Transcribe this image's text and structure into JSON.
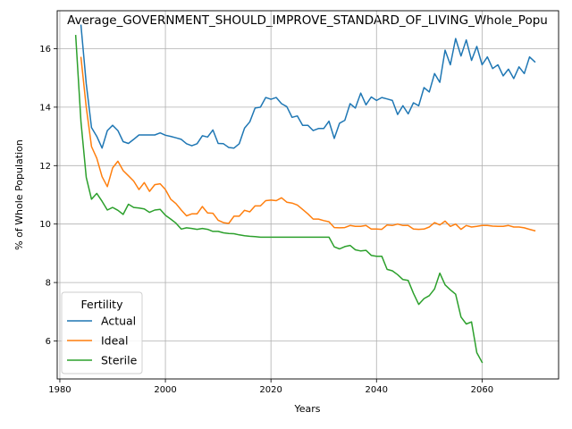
{
  "chart_data": {
    "type": "line",
    "title": "Average_GOVERNMENT_SHOULD_IMPROVE_STANDARD_OF_LIVING_Whole_Popu",
    "xlabel": "Years",
    "ylabel": "% of Whole Population",
    "xlim": [
      1979.5,
      2074.5
    ],
    "ylim": [
      4.7,
      17.3
    ],
    "xticks": [
      1980,
      2000,
      2020,
      2040,
      2060
    ],
    "yticks": [
      6,
      8,
      10,
      12,
      14,
      16
    ],
    "grid": true,
    "legend": {
      "title": "Fertility",
      "placement": "lower-left"
    },
    "series": [
      {
        "name": "Actual",
        "color": "#1f77b4",
        "x": [
          1984,
          1985,
          1986,
          1987,
          1988,
          1989,
          1990,
          1991,
          1992,
          1993,
          1994,
          1995,
          1996,
          1997,
          1998,
          1999,
          2000,
          2001,
          2002,
          2003,
          2004,
          2005,
          2006,
          2007,
          2008,
          2009,
          2010,
          2011,
          2012,
          2013,
          2014,
          2015,
          2016,
          2017,
          2018,
          2019,
          2020,
          2021,
          2022,
          2023,
          2024,
          2025,
          2026,
          2027,
          2028,
          2029,
          2030,
          2031,
          2032,
          2033,
          2034,
          2035,
          2036,
          2037,
          2038,
          2039,
          2040,
          2041,
          2042,
          2043,
          2044,
          2045,
          2046,
          2047,
          2048,
          2049,
          2050,
          2051,
          2052,
          2053,
          2054,
          2055,
          2056,
          2057,
          2058,
          2059,
          2060,
          2061,
          2062,
          2063,
          2064,
          2065,
          2066,
          2067,
          2068,
          2069,
          2070
        ],
        "y": [
          16.8,
          14.8,
          13.3,
          13.0,
          12.6,
          13.2,
          13.38,
          13.2,
          12.82,
          12.76,
          12.9,
          13.05,
          13.05,
          13.05,
          13.05,
          13.12,
          13.04,
          13.0,
          12.95,
          12.9,
          12.75,
          12.68,
          12.75,
          13.02,
          12.98,
          13.22,
          12.76,
          12.75,
          12.62,
          12.6,
          12.75,
          13.28,
          13.5,
          13.97,
          14.0,
          14.33,
          14.27,
          14.33,
          14.12,
          14.02,
          13.65,
          13.7,
          13.38,
          13.38,
          13.2,
          13.27,
          13.27,
          13.52,
          12.93,
          13.45,
          13.55,
          14.12,
          13.97,
          14.48,
          14.08,
          14.35,
          14.23,
          14.33,
          14.28,
          14.23,
          13.75,
          14.05,
          13.77,
          14.15,
          14.05,
          14.67,
          14.52,
          15.15,
          14.85,
          15.95,
          15.45,
          16.35,
          15.75,
          16.3,
          15.6,
          16.08,
          15.45,
          15.72,
          15.32,
          15.45,
          15.07,
          15.3,
          14.98,
          15.38,
          15.15,
          15.72,
          15.55
        ]
      },
      {
        "name": "Ideal",
        "color": "#ff7f0e",
        "x": [
          1984,
          1985,
          1986,
          1987,
          1988,
          1989,
          1990,
          1991,
          1992,
          1993,
          1994,
          1995,
          1996,
          1997,
          1998,
          1999,
          2000,
          2001,
          2002,
          2003,
          2004,
          2005,
          2006,
          2007,
          2008,
          2009,
          2010,
          2011,
          2012,
          2013,
          2014,
          2015,
          2016,
          2017,
          2018,
          2019,
          2020,
          2021,
          2022,
          2023,
          2024,
          2025,
          2026,
          2027,
          2028,
          2029,
          2030,
          2031,
          2032,
          2033,
          2034,
          2035,
          2036,
          2037,
          2038,
          2039,
          2040,
          2041,
          2042,
          2043,
          2044,
          2045,
          2046,
          2047,
          2048,
          2049,
          2050,
          2051,
          2052,
          2053,
          2054,
          2055,
          2056,
          2057,
          2058,
          2059,
          2060,
          2061,
          2062,
          2063,
          2064,
          2065,
          2066,
          2067,
          2068,
          2069,
          2070
        ],
        "y": [
          15.7,
          14.0,
          12.65,
          12.25,
          11.62,
          11.28,
          11.92,
          12.15,
          11.83,
          11.65,
          11.47,
          11.18,
          11.42,
          11.12,
          11.35,
          11.38,
          11.18,
          10.85,
          10.7,
          10.48,
          10.28,
          10.35,
          10.35,
          10.6,
          10.38,
          10.37,
          10.13,
          10.05,
          10.02,
          10.27,
          10.27,
          10.47,
          10.42,
          10.62,
          10.62,
          10.8,
          10.82,
          10.8,
          10.9,
          10.75,
          10.72,
          10.65,
          10.5,
          10.35,
          10.17,
          10.17,
          10.12,
          10.08,
          9.88,
          9.87,
          9.88,
          9.95,
          9.92,
          9.92,
          9.95,
          9.83,
          9.83,
          9.82,
          9.97,
          9.95,
          10.0,
          9.95,
          9.95,
          9.83,
          9.82,
          9.83,
          9.9,
          10.05,
          9.97,
          10.1,
          9.92,
          10.0,
          9.82,
          9.95,
          9.9,
          9.92,
          9.95,
          9.95,
          9.93,
          9.92,
          9.92,
          9.95,
          9.9,
          9.9,
          9.87,
          9.82,
          9.77
        ]
      },
      {
        "name": "Sterile",
        "color": "#2ca02c",
        "x": [
          1983,
          1984,
          1985,
          1986,
          1987,
          1988,
          1989,
          1990,
          1991,
          1992,
          1993,
          1994,
          1995,
          1996,
          1997,
          1998,
          1999,
          2000,
          2001,
          2002,
          2003,
          2004,
          2005,
          2006,
          2007,
          2008,
          2009,
          2010,
          2011,
          2012,
          2013,
          2014,
          2015,
          2016,
          2017,
          2018,
          2019,
          2020,
          2021,
          2022,
          2023,
          2024,
          2025,
          2026,
          2027,
          2028,
          2029,
          2030,
          2031,
          2032,
          2033,
          2034,
          2035,
          2036,
          2037,
          2038,
          2039,
          2040,
          2041,
          2042,
          2043,
          2044,
          2045,
          2046,
          2047,
          2048,
          2049,
          2050,
          2051,
          2052,
          2053,
          2054,
          2055,
          2056,
          2057,
          2058,
          2059,
          2060
        ],
        "y": [
          16.45,
          13.5,
          11.6,
          10.85,
          11.05,
          10.78,
          10.48,
          10.57,
          10.47,
          10.33,
          10.68,
          10.57,
          10.55,
          10.52,
          10.4,
          10.48,
          10.5,
          10.3,
          10.17,
          10.03,
          9.83,
          9.87,
          9.85,
          9.82,
          9.85,
          9.82,
          9.75,
          9.75,
          9.7,
          9.68,
          9.67,
          9.63,
          9.6,
          9.58,
          9.57,
          9.55,
          9.55,
          9.55,
          9.55,
          9.55,
          9.55,
          9.55,
          9.55,
          9.55,
          9.55,
          9.55,
          9.55,
          9.55,
          9.55,
          9.22,
          9.15,
          9.23,
          9.27,
          9.12,
          9.08,
          9.1,
          8.93,
          8.9,
          8.9,
          8.45,
          8.4,
          8.27,
          8.1,
          8.07,
          7.63,
          7.25,
          7.45,
          7.55,
          7.78,
          8.32,
          7.92,
          7.75,
          7.6,
          6.82,
          6.58,
          6.65,
          5.6,
          5.27
        ]
      }
    ]
  }
}
